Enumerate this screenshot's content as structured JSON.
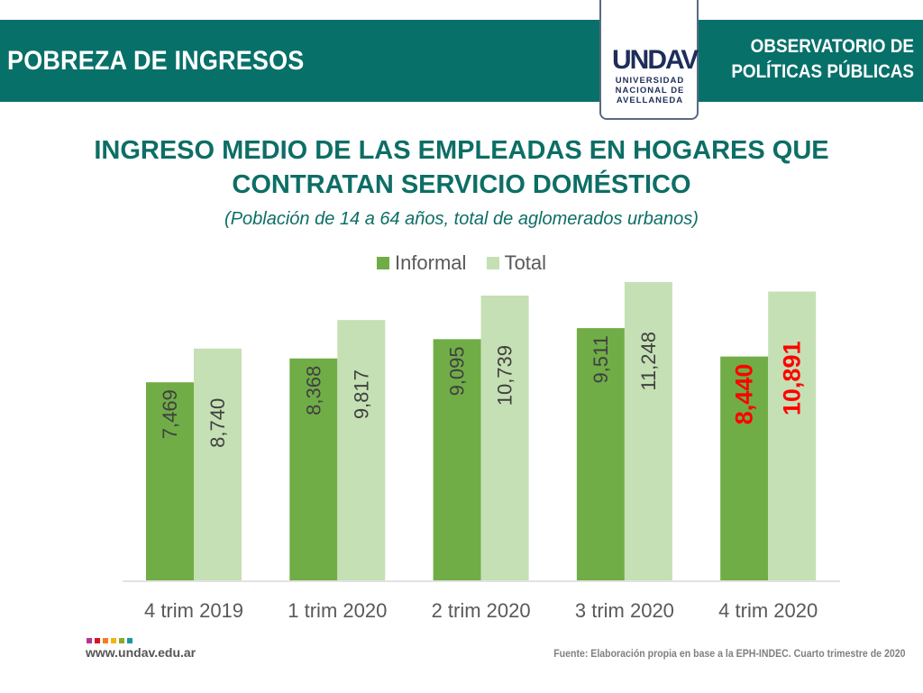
{
  "header": {
    "section_title": "POBREZA DE INGRESOS",
    "observatorio_line1": "OBSERVATORIO DE",
    "observatorio_line2": "POLÍTICAS PÚBLICAS",
    "logo": {
      "mark": "UNDAV",
      "line1": "UNIVERSIDAD",
      "line2": "NACIONAL DE",
      "line3": "AVELLANEDA"
    },
    "band_color": "#077069"
  },
  "chart_data": {
    "type": "bar",
    "title_line1": "INGRESO MEDIO DE LAS EMPLEADAS EN HOGARES QUE",
    "title_line2": "CONTRATAN SERVICIO DOMÉSTICO",
    "subtitle": "(Población de 14 a 64 años, total de aglomerados urbanos)",
    "categories": [
      "4 trim 2019",
      "1 trim 2020",
      "2 trim 2020",
      "3 trim 2020",
      "4 trim 2020"
    ],
    "series": [
      {
        "name": "Informal",
        "color": "#70ad47",
        "values": [
          7469,
          8368,
          9095,
          9511,
          8440
        ],
        "labels": [
          "7,469",
          "8,368",
          "9,095",
          "9,511",
          "8,440"
        ]
      },
      {
        "name": "Total",
        "color": "#c5e0b4",
        "values": [
          8740,
          9817,
          10739,
          11248,
          10891
        ],
        "labels": [
          "8,740",
          "9,817",
          "10,739",
          "11,248",
          "10,891"
        ]
      }
    ],
    "highlight_category_index": 4,
    "highlight_label_color": "#ff0000",
    "label_color": "#404040",
    "xlabel": "",
    "ylabel": "",
    "ylim": [
      0,
      11500
    ],
    "grid": false,
    "legend_position": "top-center"
  },
  "footer": {
    "url": "www.undav.edu.ar",
    "source": "Fuente: Elaboración propia en base a la EPH-INDEC. Cuarto trimestre de 2020",
    "square_colors": [
      "#b2388f",
      "#d9112b",
      "#f07f1e",
      "#f3b311",
      "#8ea82c",
      "#1a97a7"
    ]
  }
}
